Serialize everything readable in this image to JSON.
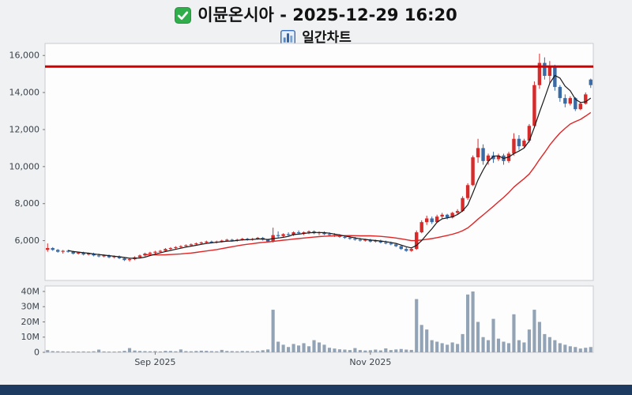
{
  "header": {
    "checkbox_icon": "checked-checkbox",
    "title": "이뮨온시아 - 2025-12-29 16:20",
    "chart_icon": "bar-chart",
    "subtitle": "일간차트"
  },
  "footer": {
    "bar_color": "#1d3b60"
  },
  "chart_data": {
    "type": "candlestick",
    "title": "이뮨온시아 - 2025-12-29 16:20",
    "subtitle": "일간차트",
    "volume_panel": true,
    "grid": false,
    "legend": false,
    "candle_fields": [
      "open",
      "high",
      "low",
      "close",
      "volume_millions"
    ],
    "price_axis": {
      "ylim": [
        3850,
        16650
      ],
      "ticks": [
        {
          "label": "16,000",
          "value": 16000
        },
        {
          "label": "14,000",
          "value": 14000
        },
        {
          "label": "12,000",
          "value": 12000
        },
        {
          "label": "10,000",
          "value": 10000
        },
        {
          "label": "8,000",
          "value": 8000
        },
        {
          "label": "6,000",
          "value": 6000
        }
      ]
    },
    "volume_axis": {
      "unit": "millions",
      "ylim": [
        0,
        43.6
      ],
      "ticks": [
        {
          "label": "40M",
          "value": 40
        },
        {
          "label": "30M",
          "value": 30
        },
        {
          "label": "20M",
          "value": 20
        },
        {
          "label": "10M",
          "value": 10
        },
        {
          "label": "0",
          "value": 0
        }
      ]
    },
    "x_axis": {
      "ticks": [
        {
          "label": "Sep 2025",
          "index": 21
        },
        {
          "label": "Nov 2025",
          "index": 63
        }
      ]
    },
    "overlays": {
      "resistance_line": 15400,
      "ma_short_period": 5,
      "ma_long_period": 20
    },
    "colors": {
      "up": "#d62b2b",
      "down": "#3a6ba5",
      "ma_short": "#1a1a1a",
      "ma_long": "#e02525",
      "resistance": "#d40000",
      "volume": "#93a3b6",
      "plot_bg": "#fdfdfe",
      "plot_border": "#c9ccd0"
    },
    "candles": [
      [
        5500,
        5850,
        5400,
        5600,
        1.5
      ],
      [
        5600,
        5650,
        5450,
        5500,
        0.8
      ],
      [
        5500,
        5550,
        5350,
        5400,
        0.7
      ],
      [
        5400,
        5500,
        5300,
        5450,
        0.6
      ],
      [
        5450,
        5500,
        5350,
        5400,
        0.5
      ],
      [
        5400,
        5450,
        5250,
        5300,
        0.6
      ],
      [
        5300,
        5400,
        5250,
        5350,
        0.5
      ],
      [
        5350,
        5400,
        5200,
        5250,
        0.6
      ],
      [
        5250,
        5350,
        5200,
        5300,
        0.5
      ],
      [
        5300,
        5350,
        5150,
        5200,
        0.7
      ],
      [
        5200,
        5300,
        5100,
        5150,
        1.8
      ],
      [
        5150,
        5250,
        5100,
        5200,
        0.6
      ],
      [
        5200,
        5250,
        5050,
        5100,
        0.5
      ],
      [
        5100,
        5200,
        5050,
        5150,
        0.4
      ],
      [
        5150,
        5200,
        5000,
        5050,
        0.6
      ],
      [
        5050,
        5100,
        4900,
        4950,
        1.0
      ],
      [
        4950,
        5050,
        4870,
        5000,
        2.8
      ],
      [
        5000,
        5150,
        4950,
        5100,
        1.2
      ],
      [
        5100,
        5250,
        5050,
        5200,
        0.9
      ],
      [
        5200,
        5350,
        5150,
        5300,
        0.8
      ],
      [
        5300,
        5400,
        5250,
        5350,
        0.7
      ],
      [
        5350,
        5450,
        5300,
        5400,
        0.8
      ],
      [
        5400,
        5500,
        5350,
        5450,
        0.6
      ],
      [
        5450,
        5600,
        5400,
        5550,
        1.0
      ],
      [
        5550,
        5650,
        5500,
        5600,
        0.9
      ],
      [
        5600,
        5700,
        5550,
        5650,
        0.7
      ],
      [
        5650,
        5750,
        5600,
        5700,
        1.9
      ],
      [
        5700,
        5800,
        5650,
        5750,
        0.8
      ],
      [
        5750,
        5850,
        5700,
        5800,
        0.7
      ],
      [
        5800,
        5900,
        5750,
        5850,
        0.9
      ],
      [
        5850,
        5950,
        5800,
        5900,
        1.1
      ],
      [
        5900,
        6000,
        5850,
        5950,
        1.0
      ],
      [
        5950,
        6000,
        5850,
        5900,
        0.8
      ],
      [
        5900,
        6000,
        5850,
        5950,
        0.7
      ],
      [
        5950,
        6050,
        5900,
        6000,
        1.6
      ],
      [
        6000,
        6100,
        5950,
        6050,
        0.9
      ],
      [
        6050,
        6100,
        5950,
        6000,
        0.8
      ],
      [
        6000,
        6100,
        5950,
        6050,
        0.7
      ],
      [
        6050,
        6150,
        6000,
        6100,
        0.9
      ],
      [
        6100,
        6150,
        6000,
        6050,
        0.8
      ],
      [
        6050,
        6150,
        6000,
        6100,
        0.7
      ],
      [
        6100,
        6200,
        6050,
        6150,
        0.9
      ],
      [
        6150,
        6200,
        6000,
        6050,
        1.4
      ],
      [
        6050,
        6100,
        5900,
        5950,
        1.9
      ],
      [
        5950,
        6700,
        5900,
        6300,
        28
      ],
      [
        6300,
        6500,
        6150,
        6250,
        7
      ],
      [
        6250,
        6400,
        6150,
        6350,
        5
      ],
      [
        6350,
        6450,
        6250,
        6300,
        3.5
      ],
      [
        6300,
        6500,
        6250,
        6450,
        5.5
      ],
      [
        6450,
        6550,
        6350,
        6400,
        4.5
      ],
      [
        6400,
        6500,
        6300,
        6450,
        6
      ],
      [
        6450,
        6550,
        6350,
        6500,
        4
      ],
      [
        6500,
        6550,
        6350,
        6400,
        8
      ],
      [
        6400,
        6500,
        6300,
        6450,
        6.5
      ],
      [
        6450,
        6500,
        6300,
        6350,
        5
      ],
      [
        6350,
        6450,
        6250,
        6300,
        3
      ],
      [
        6300,
        6400,
        6200,
        6250,
        2.5
      ],
      [
        6250,
        6350,
        6150,
        6200,
        2
      ],
      [
        6200,
        6300,
        6100,
        6150,
        1.8
      ],
      [
        6150,
        6250,
        6050,
        6100,
        1.5
      ],
      [
        6100,
        6200,
        6000,
        6050,
        2.8
      ],
      [
        6050,
        6150,
        5950,
        6000,
        1.5
      ],
      [
        6000,
        6100,
        5950,
        6050,
        1.2
      ],
      [
        6050,
        6100,
        5900,
        5950,
        1.4
      ],
      [
        5950,
        6050,
        5900,
        6000,
        1.8
      ],
      [
        6000,
        6050,
        5850,
        5900,
        1.3
      ],
      [
        5900,
        6000,
        5800,
        5850,
        2.6
      ],
      [
        5850,
        5950,
        5750,
        5800,
        1.5
      ],
      [
        5800,
        5850,
        5650,
        5700,
        1.9
      ],
      [
        5700,
        5750,
        5500,
        5550,
        2.2
      ],
      [
        5550,
        5650,
        5400,
        5450,
        1.8
      ],
      [
        5450,
        5600,
        5400,
        5550,
        1.6
      ],
      [
        5550,
        6550,
        5500,
        6450,
        35
      ],
      [
        6450,
        7100,
        6400,
        7000,
        18
      ],
      [
        7000,
        7350,
        6850,
        7200,
        15
      ],
      [
        7200,
        7300,
        6900,
        7000,
        8
      ],
      [
        7000,
        7400,
        6950,
        7300,
        7
      ],
      [
        7300,
        7500,
        7200,
        7400,
        6
      ],
      [
        7400,
        7450,
        7150,
        7250,
        5
      ],
      [
        7250,
        7550,
        7200,
        7500,
        6.5
      ],
      [
        7500,
        7700,
        7400,
        7600,
        5.5
      ],
      [
        7600,
        8400,
        7550,
        8300,
        12
      ],
      [
        8300,
        9100,
        8200,
        9000,
        38
      ],
      [
        9000,
        10600,
        8950,
        10500,
        40
      ],
      [
        10500,
        11500,
        10200,
        11000,
        20
      ],
      [
        11000,
        11200,
        10100,
        10300,
        10
      ],
      [
        10300,
        10700,
        10100,
        10600,
        8
      ],
      [
        10600,
        10800,
        10200,
        10400,
        22
      ],
      [
        10400,
        10700,
        10300,
        10600,
        9
      ],
      [
        10600,
        10700,
        10100,
        10300,
        7
      ],
      [
        10300,
        10800,
        10200,
        10700,
        6
      ],
      [
        10700,
        11800,
        10600,
        11500,
        25
      ],
      [
        11500,
        11700,
        10900,
        11100,
        8
      ],
      [
        11100,
        11500,
        11000,
        11400,
        6.5
      ],
      [
        11400,
        12300,
        11300,
        12200,
        15
      ],
      [
        12200,
        14600,
        12100,
        14400,
        28
      ],
      [
        14400,
        16100,
        14200,
        15600,
        20
      ],
      [
        15600,
        15900,
        14700,
        14900,
        12
      ],
      [
        14900,
        15700,
        14500,
        15400,
        10
      ],
      [
        15400,
        15500,
        14100,
        14300,
        8
      ],
      [
        14300,
        14400,
        13500,
        13700,
        6
      ],
      [
        13700,
        13900,
        13200,
        13400,
        5
      ],
      [
        13400,
        13800,
        13300,
        13700,
        4
      ],
      [
        13700,
        13750,
        13000,
        13100,
        3.5
      ],
      [
        13100,
        13500,
        13050,
        13400,
        2.5
      ],
      [
        13400,
        14000,
        13350,
        13900,
        3
      ],
      [
        14700,
        14750,
        14250,
        14400,
        3.5
      ]
    ]
  }
}
